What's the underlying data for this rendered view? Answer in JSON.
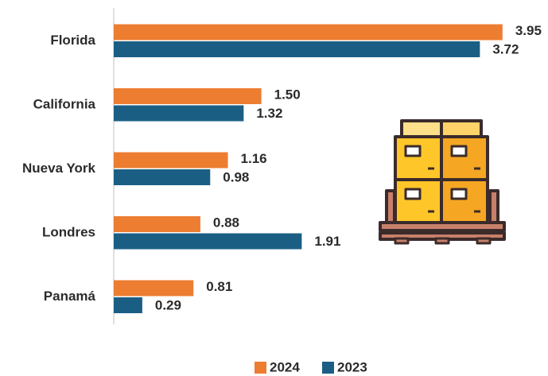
{
  "chart_data": {
    "type": "bar",
    "orientation": "horizontal",
    "categories": [
      "Florida",
      "California",
      "Nueva York",
      "Londres",
      "Panamá"
    ],
    "series": [
      {
        "name": "2024",
        "color": "#ED7D31",
        "values": [
          3.95,
          1.5,
          1.16,
          0.88,
          0.81
        ],
        "value_labels": [
          "3.95",
          "1.50",
          "1.16",
          "0.88",
          "0.81"
        ]
      },
      {
        "name": "2023",
        "color": "#1B5E84",
        "values": [
          3.72,
          1.32,
          0.98,
          1.91,
          0.29
        ],
        "value_labels": [
          "3.72",
          "1.32",
          "0.98",
          "1.91",
          "0.29"
        ]
      }
    ],
    "xlim": [
      0,
      4
    ],
    "legend": "bottom"
  }
}
